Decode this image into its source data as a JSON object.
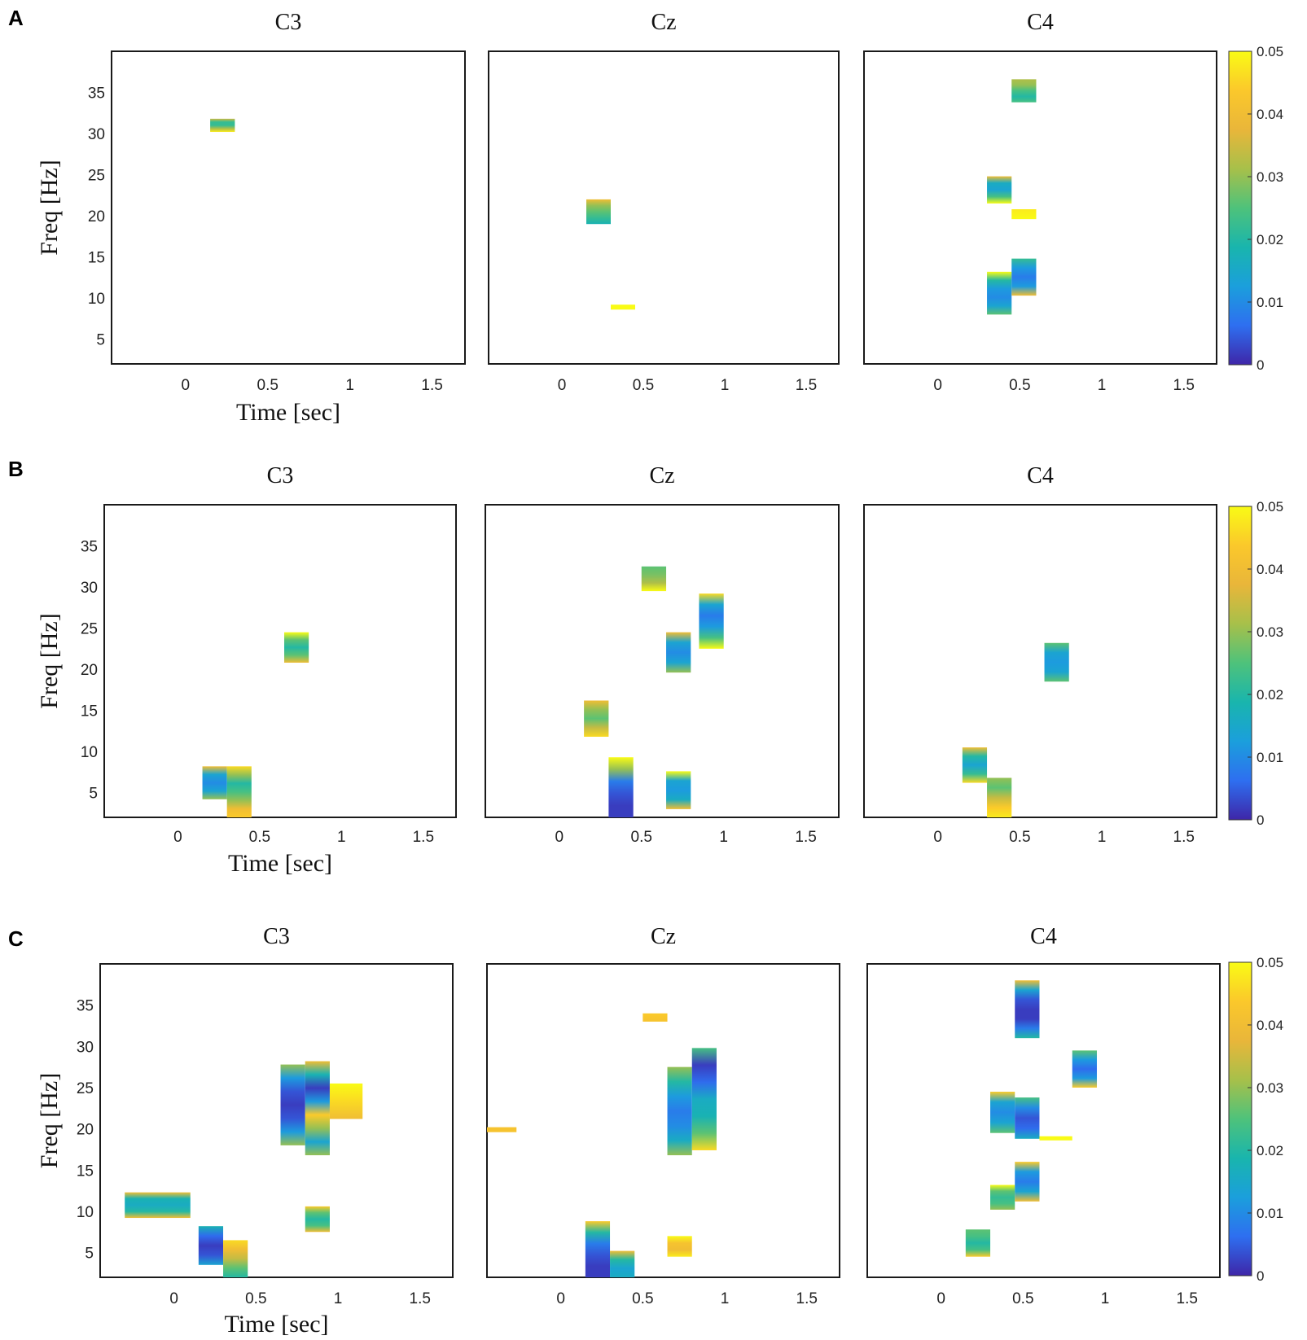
{
  "figure": {
    "colorbar": {
      "colors": [
        "#3e26a8",
        "#2e6ff0",
        "#1b9fdc",
        "#19b5ad",
        "#4ec27b",
        "#a7c04a",
        "#e9b63a",
        "#fbc82b",
        "#f9fb15"
      ]
    }
  },
  "chart_data": [
    {
      "panel": "A",
      "type": "heatmap",
      "xlabel": "Time [sec]",
      "ylabel": "Freq [Hz]",
      "xlim": [
        -0.45,
        1.7
      ],
      "ylim": [
        2,
        40
      ],
      "xticks": [
        0,
        0.5,
        1,
        1.5
      ],
      "xtick_labels": [
        "0",
        "0.5",
        "1",
        "1.5"
      ],
      "yticks": [
        5,
        10,
        15,
        20,
        25,
        30,
        35
      ],
      "ytick_labels": [
        "5",
        "10",
        "15",
        "20",
        "25",
        "30",
        "35"
      ],
      "colorbar": {
        "min": 0,
        "max": 0.05,
        "ticks": [
          0,
          0.01,
          0.02,
          0.03,
          0.04,
          0.05
        ],
        "tick_labels": [
          "0",
          "0.01",
          "0.02",
          "0.03",
          "0.04",
          "0.05"
        ]
      },
      "subplots": [
        {
          "title": "C3",
          "show_xlabel": true,
          "show_ylabel": true,
          "show_yticks": true,
          "clusters": [
            {
              "t0": 0.15,
              "t1": 0.3,
              "f0": 30.2,
              "f1": 31.8,
              "stops": [
                0.048,
                0.032,
                0.022,
                0.022,
                0.035
              ]
            }
          ]
        },
        {
          "title": "Cz",
          "show_xlabel": false,
          "show_ylabel": false,
          "show_yticks": false,
          "clusters": [
            {
              "t0": 0.15,
              "t1": 0.3,
              "f0": 19,
              "f1": 22,
              "stops": [
                0.018,
                0.022,
                0.026,
                0.03,
                0.04
              ]
            },
            {
              "t0": 0.3,
              "t1": 0.45,
              "f0": 8.6,
              "f1": 9.2,
              "stops": [
                0.05,
                0.05
              ]
            }
          ]
        },
        {
          "title": "C4",
          "show_xlabel": false,
          "show_ylabel": false,
          "show_yticks": false,
          "clusters": [
            {
              "t0": 0.45,
              "t1": 0.6,
              "f0": 33.8,
              "f1": 36.6,
              "stops": [
                0.024,
                0.02,
                0.024,
                0.03,
                0.032
              ]
            },
            {
              "t0": 0.3,
              "t1": 0.45,
              "f0": 21.5,
              "f1": 24.8,
              "stops": [
                0.05,
                0.024,
                0.014,
                0.016,
                0.04
              ]
            },
            {
              "t0": 0.45,
              "t1": 0.6,
              "f0": 19.6,
              "f1": 20.8,
              "stops": [
                0.05,
                0.048
              ]
            },
            {
              "t0": 0.3,
              "t1": 0.45,
              "f0": 8,
              "f1": 13.2,
              "stops": [
                0.026,
                0.014,
                0.01,
                0.012,
                0.02,
                0.05
              ]
            },
            {
              "t0": 0.45,
              "t1": 0.6,
              "f0": 10.3,
              "f1": 14.8,
              "stops": [
                0.04,
                0.012,
                0.008,
                0.012,
                0.022
              ]
            }
          ]
        }
      ]
    },
    {
      "panel": "B",
      "type": "heatmap",
      "xlabel": "Time [sec]",
      "ylabel": "Freq [Hz]",
      "xlim": [
        -0.45,
        1.7
      ],
      "ylim": [
        2,
        40
      ],
      "xticks": [
        0,
        0.5,
        1,
        1.5
      ],
      "xtick_labels": [
        "0",
        "0.5",
        "1",
        "1.5"
      ],
      "yticks": [
        5,
        10,
        15,
        20,
        25,
        30,
        35
      ],
      "ytick_labels": [
        "5",
        "10",
        "15",
        "20",
        "25",
        "30",
        "35"
      ],
      "colorbar": {
        "min": 0,
        "max": 0.05,
        "ticks": [
          0,
          0.01,
          0.02,
          0.03,
          0.04,
          0.05
        ],
        "tick_labels": [
          "0",
          "0.01",
          "0.02",
          "0.03",
          "0.04",
          "0.05"
        ]
      },
      "subplots": [
        {
          "title": "C3",
          "show_xlabel": true,
          "show_ylabel": true,
          "show_yticks": true,
          "clusters": [
            {
              "t0": 0.65,
              "t1": 0.8,
              "f0": 20.8,
              "f1": 24.5,
              "stops": [
                0.04,
                0.026,
                0.02,
                0.026,
                0.05
              ]
            },
            {
              "t0": 0.15,
              "t1": 0.3,
              "f0": 4.2,
              "f1": 8.2,
              "stops": [
                0.03,
                0.014,
                0.01,
                0.014,
                0.04
              ]
            },
            {
              "t0": 0.3,
              "t1": 0.45,
              "f0": 2,
              "f1": 8.2,
              "stops": [
                0.044,
                0.04,
                0.03,
                0.024,
                0.02,
                0.03,
                0.046
              ]
            }
          ]
        },
        {
          "title": "Cz",
          "show_xlabel": false,
          "show_ylabel": false,
          "show_yticks": false,
          "clusters": [
            {
              "t0": 0.5,
              "t1": 0.65,
              "f0": 29.5,
              "f1": 32.5,
              "stops": [
                0.05,
                0.032,
                0.028,
                0.026
              ]
            },
            {
              "t0": 0.85,
              "t1": 1.0,
              "f0": 22.5,
              "f1": 29.2,
              "stops": [
                0.05,
                0.024,
                0.012,
                0.008,
                0.014,
                0.046
              ]
            },
            {
              "t0": 0.65,
              "t1": 0.8,
              "f0": 19.6,
              "f1": 24.5,
              "stops": [
                0.03,
                0.014,
                0.01,
                0.014,
                0.04
              ]
            },
            {
              "t0": 0.15,
              "t1": 0.3,
              "f0": 11.8,
              "f1": 16.2,
              "stops": [
                0.046,
                0.034,
                0.026,
                0.03,
                0.04
              ]
            },
            {
              "t0": 0.3,
              "t1": 0.45,
              "f0": 2,
              "f1": 9.3,
              "stops": [
                0.002,
                0.002,
                0.004,
                0.008,
                0.03,
                0.05
              ]
            },
            {
              "t0": 0.65,
              "t1": 0.8,
              "f0": 3,
              "f1": 7.6,
              "stops": [
                0.04,
                0.016,
                0.012,
                0.014,
                0.05
              ]
            }
          ]
        },
        {
          "title": "C4",
          "show_xlabel": false,
          "show_ylabel": false,
          "show_yticks": false,
          "clusters": [
            {
              "t0": 0.65,
              "t1": 0.8,
              "f0": 18.5,
              "f1": 23.2,
              "stops": [
                0.026,
                0.014,
                0.012,
                0.014,
                0.026
              ]
            },
            {
              "t0": 0.15,
              "t1": 0.3,
              "f0": 6.2,
              "f1": 10.5,
              "stops": [
                0.046,
                0.022,
                0.014,
                0.02,
                0.04
              ]
            },
            {
              "t0": 0.3,
              "t1": 0.45,
              "f0": 2,
              "f1": 6.8,
              "stops": [
                0.048,
                0.044,
                0.034,
                0.026,
                0.03
              ]
            }
          ]
        }
      ]
    },
    {
      "panel": "C",
      "type": "heatmap",
      "xlabel": "Time [sec]",
      "ylabel": "Freq [Hz]",
      "xlim": [
        -0.45,
        1.7
      ],
      "ylim": [
        2,
        40
      ],
      "xticks": [
        0,
        0.5,
        1,
        1.5
      ],
      "xtick_labels": [
        "0",
        "0.5",
        "1",
        "1.5"
      ],
      "yticks": [
        5,
        10,
        15,
        20,
        25,
        30,
        35
      ],
      "ytick_labels": [
        "5",
        "10",
        "15",
        "20",
        "25",
        "30",
        "35"
      ],
      "colorbar": {
        "min": 0,
        "max": 0.05,
        "ticks": [
          0,
          0.01,
          0.02,
          0.03,
          0.04,
          0.05
        ],
        "tick_labels": [
          "0",
          "0.01",
          "0.02",
          "0.03",
          "0.04",
          "0.05"
        ]
      },
      "subplots": [
        {
          "title": "C3",
          "show_xlabel": true,
          "show_ylabel": true,
          "show_yticks": true,
          "clusters": [
            {
              "t0": -0.3,
              "t1": 0.1,
              "f0": 9.2,
              "f1": 12.3,
              "stops": [
                0.04,
                0.02,
                0.016,
                0.018,
                0.04
              ]
            },
            {
              "t0": 0.15,
              "t1": 0.3,
              "f0": 3.5,
              "f1": 8.2,
              "stops": [
                0.014,
                0.004,
                0.002,
                0.006,
                0.018
              ]
            },
            {
              "t0": 0.3,
              "t1": 0.45,
              "f0": 2,
              "f1": 6.5,
              "stops": [
                0.02,
                0.026,
                0.034,
                0.04,
                0.046
              ]
            },
            {
              "t0": 0.65,
              "t1": 0.8,
              "f0": 18,
              "f1": 27.8,
              "stops": [
                0.03,
                0.012,
                0.004,
                0.002,
                0.004,
                0.012,
                0.03
              ]
            },
            {
              "t0": 0.8,
              "t1": 0.95,
              "f0": 16.8,
              "f1": 28.2,
              "stops": [
                0.03,
                0.014,
                0.03,
                0.044,
                0.012,
                0.002,
                0.018,
                0.04
              ]
            },
            {
              "t0": 0.95,
              "t1": 1.15,
              "f0": 21.2,
              "f1": 25.5,
              "stops": [
                0.04,
                0.046,
                0.05
              ]
            },
            {
              "t0": 0.8,
              "t1": 0.95,
              "f0": 7.5,
              "f1": 10.6,
              "stops": [
                0.04,
                0.024,
                0.02,
                0.026,
                0.044
              ]
            }
          ]
        },
        {
          "title": "Cz",
          "show_xlabel": false,
          "show_ylabel": false,
          "show_yticks": false,
          "clusters": [
            {
              "t0": 0.5,
              "t1": 0.65,
              "f0": 33,
              "f1": 34,
              "stops": [
                0.042,
                0.044
              ]
            },
            {
              "t0": -0.45,
              "t1": -0.27,
              "f0": 19.6,
              "f1": 20.2,
              "stops": [
                0.042,
                0.042
              ]
            },
            {
              "t0": 0.65,
              "t1": 0.8,
              "f0": 16.8,
              "f1": 27.5,
              "stops": [
                0.03,
                0.016,
                0.01,
                0.008,
                0.012,
                0.02,
                0.03
              ]
            },
            {
              "t0": 0.8,
              "t1": 0.95,
              "f0": 17.4,
              "f1": 29.8,
              "stops": [
                0.046,
                0.026,
                0.018,
                0.016,
                0.006,
                0.002,
                0.024
              ]
            },
            {
              "t0": 0.15,
              "t1": 0.3,
              "f0": 2,
              "f1": 8.8,
              "stops": [
                0.002,
                0.002,
                0.004,
                0.008,
                0.02,
                0.044
              ]
            },
            {
              "t0": 0.3,
              "t1": 0.45,
              "f0": 2,
              "f1": 5.2,
              "stops": [
                0.016,
                0.014,
                0.02,
                0.04
              ]
            },
            {
              "t0": 0.65,
              "t1": 0.8,
              "f0": 4.5,
              "f1": 7,
              "stops": [
                0.048,
                0.04,
                0.042,
                0.05
              ]
            }
          ]
        },
        {
          "title": "C4",
          "show_xlabel": false,
          "show_ylabel": false,
          "show_yticks": false,
          "clusters": [
            {
              "t0": 0.45,
              "t1": 0.6,
              "f0": 31,
              "f1": 38,
              "stops": [
                0.02,
                0.008,
                0.002,
                0.002,
                0.004,
                0.014,
                0.04
              ]
            },
            {
              "t0": 0.8,
              "t1": 0.95,
              "f0": 25,
              "f1": 29.5,
              "stops": [
                0.044,
                0.012,
                0.006,
                0.012,
                0.026
              ]
            },
            {
              "t0": 0.3,
              "t1": 0.45,
              "f0": 19.5,
              "f1": 24.5,
              "stops": [
                0.026,
                0.014,
                0.01,
                0.014,
                0.044
              ]
            },
            {
              "t0": 0.45,
              "t1": 0.6,
              "f0": 18.8,
              "f1": 23.8,
              "stops": [
                0.016,
                0.006,
                0.004,
                0.01,
                0.024
              ]
            },
            {
              "t0": 0.6,
              "t1": 0.8,
              "f0": 18.6,
              "f1": 19.1,
              "stops": [
                0.05,
                0.05
              ]
            },
            {
              "t0": 0.3,
              "t1": 0.45,
              "f0": 10.2,
              "f1": 13.2,
              "stops": [
                0.03,
                0.024,
                0.022,
                0.026,
                0.05
              ]
            },
            {
              "t0": 0.45,
              "t1": 0.6,
              "f0": 11.2,
              "f1": 16,
              "stops": [
                0.04,
                0.014,
                0.008,
                0.012,
                0.044
              ]
            },
            {
              "t0": 0.15,
              "t1": 0.3,
              "f0": 4.5,
              "f1": 7.8,
              "stops": [
                0.044,
                0.024,
                0.02,
                0.024,
                0.026
              ]
            }
          ]
        }
      ]
    }
  ]
}
